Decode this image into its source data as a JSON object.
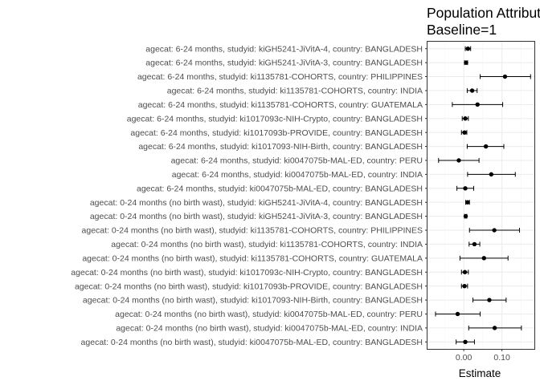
{
  "chart_data": {
    "type": "forest",
    "title_lines": [
      "Population Attributable",
      "Baseline=1"
    ],
    "xlabel": "Estimate",
    "ylabel": "",
    "xlim": [
      -0.095,
      0.185
    ],
    "x_ticks": [
      0.0,
      0.1
    ],
    "x_tick_labels": [
      "0.00",
      "0.10"
    ],
    "grid": true,
    "panel_border": true,
    "categories": [
      "agecat: 6-24 months, studyid: kiGH5241-JiVitA-4, country: BANGLADESH",
      "agecat: 6-24 months, studyid: kiGH5241-JiVitA-3, country: BANGLADESH",
      "agecat: 6-24 months, studyid: ki1135781-COHORTS, country: PHILIPPINES",
      "agecat: 6-24 months, studyid: ki1135781-COHORTS, country: INDIA",
      "agecat: 6-24 months, studyid: ki1135781-COHORTS, country: GUATEMALA",
      "agecat: 6-24 months, studyid: ki1017093c-NIH-Crypto, country: BANGLADESH",
      "agecat: 6-24 months, studyid: ki1017093b-PROVIDE, country: BANGLADESH",
      "agecat: 6-24 months, studyid: ki1017093-NIH-Birth, country: BANGLADESH",
      "agecat: 6-24 months, studyid: ki0047075b-MAL-ED, country: PERU",
      "agecat: 6-24 months, studyid: ki0047075b-MAL-ED, country: INDIA",
      "agecat: 6-24 months, studyid: ki0047075b-MAL-ED, country: BANGLADESH",
      "agecat: 0-24 months (no birth wast), studyid: kiGH5241-JiVitA-4, country: BANGLADESH",
      "agecat: 0-24 months (no birth wast), studyid: kiGH5241-JiVitA-3, country: BANGLADESH",
      "agecat: 0-24 months (no birth wast), studyid: ki1135781-COHORTS, country: PHILIPPINES",
      "agecat: 0-24 months (no birth wast), studyid: ki1135781-COHORTS, country: INDIA",
      "agecat: 0-24 months (no birth wast), studyid: ki1135781-COHORTS, country: GUATEMALA",
      "agecat: 0-24 months (no birth wast), studyid: ki1017093c-NIH-Crypto, country: BANGLADESH",
      "agecat: 0-24 months (no birth wast), studyid: ki1017093b-PROVIDE, country: BANGLADESH",
      "agecat: 0-24 months (no birth wast), studyid: ki1017093-NIH-Birth, country: BANGLADESH",
      "agecat: 0-24 months (no birth wast), studyid: ki0047075b-MAL-ED, country: PERU",
      "agecat: 0-24 months (no birth wast), studyid: ki0047075b-MAL-ED, country: INDIA",
      "agecat: 0-24 months (no birth wast), studyid: ki0047075b-MAL-ED, country: BANGLADESH"
    ],
    "estimates": [
      0.011,
      0.006,
      0.108,
      0.022,
      0.036,
      0.004,
      0.002,
      0.058,
      -0.013,
      0.072,
      0.004,
      0.01,
      0.005,
      0.08,
      0.028,
      0.053,
      0.003,
      0.002,
      0.067,
      -0.016,
      0.081,
      0.004
    ],
    "lower": [
      0.004,
      0.002,
      0.043,
      0.009,
      -0.03,
      -0.004,
      -0.006,
      0.009,
      -0.066,
      0.01,
      -0.018,
      0.005,
      0.002,
      0.015,
      0.014,
      -0.01,
      -0.006,
      -0.006,
      0.024,
      -0.074,
      0.013,
      -0.02
    ],
    "upper": [
      0.018,
      0.01,
      0.175,
      0.035,
      0.102,
      0.012,
      0.008,
      0.105,
      0.04,
      0.135,
      0.026,
      0.015,
      0.008,
      0.146,
      0.042,
      0.116,
      0.012,
      0.01,
      0.111,
      0.043,
      0.151,
      0.028
    ],
    "colors": {
      "panel_border": "#333333",
      "grid_major": "#ebebeb",
      "grid_minor": "#f5f5f5",
      "point": "#000000",
      "errorbar": "#000000",
      "tick_text": "#4d4d4d",
      "title_text": "#000000"
    }
  }
}
